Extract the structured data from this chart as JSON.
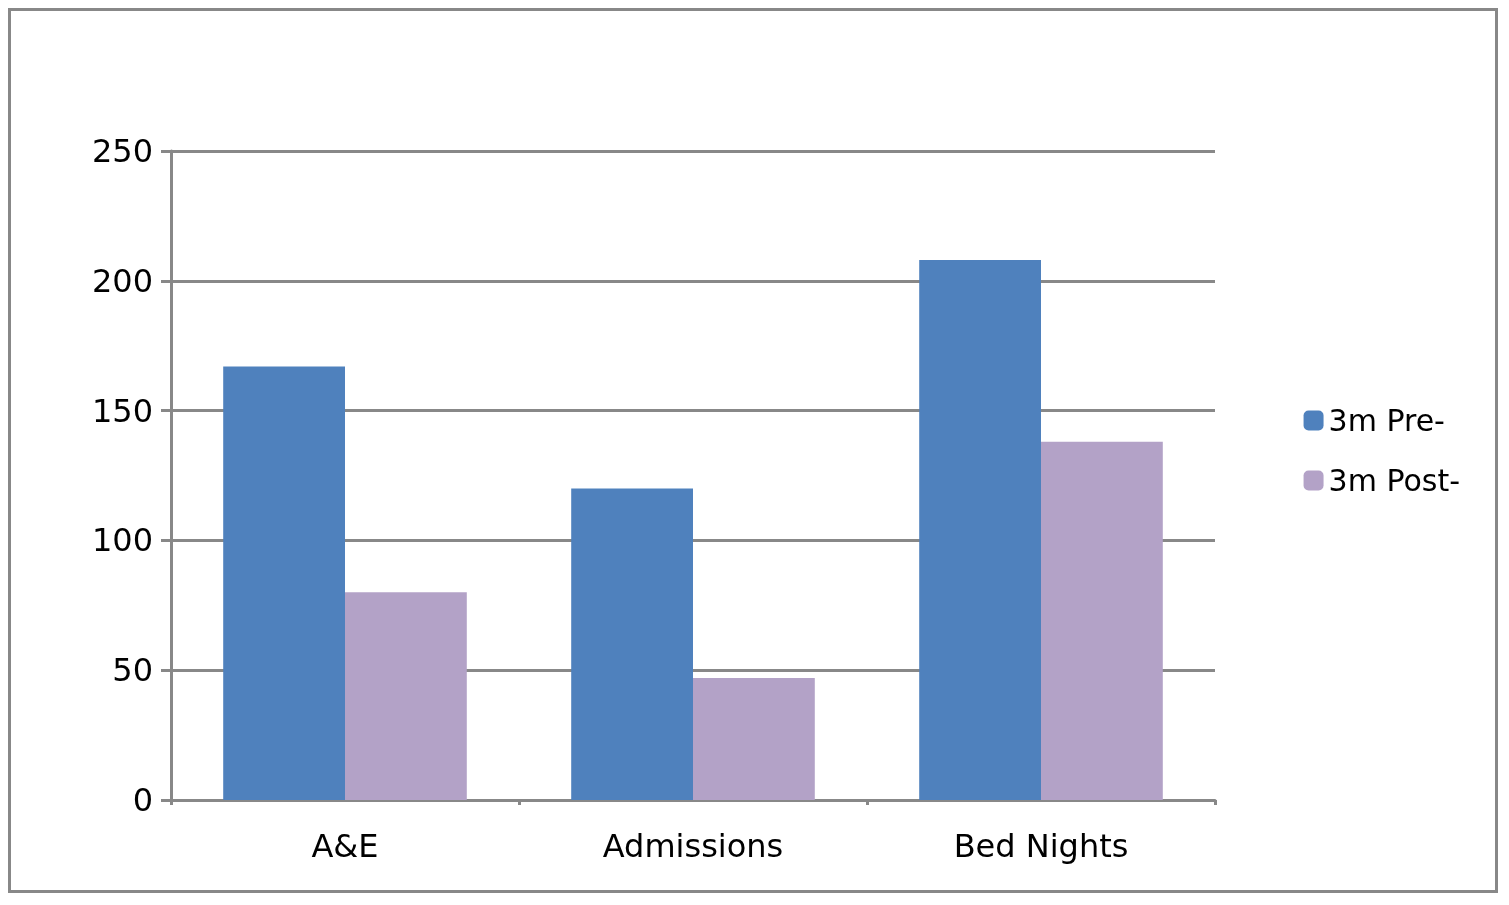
{
  "chart_data": {
    "type": "bar",
    "categories": [
      "A&E",
      "Admissions",
      "Bed Nights"
    ],
    "series": [
      {
        "name": "3m Pre-",
        "color": "#4f81bd",
        "values": [
          167,
          120,
          208
        ]
      },
      {
        "name": "3m Post-",
        "color": "#b3a2c7",
        "values": [
          80,
          47,
          138
        ]
      }
    ],
    "ylim": [
      0,
      250
    ],
    "yticks": [
      0,
      50,
      100,
      150,
      200,
      250
    ],
    "grid": "y",
    "legend": "right"
  }
}
